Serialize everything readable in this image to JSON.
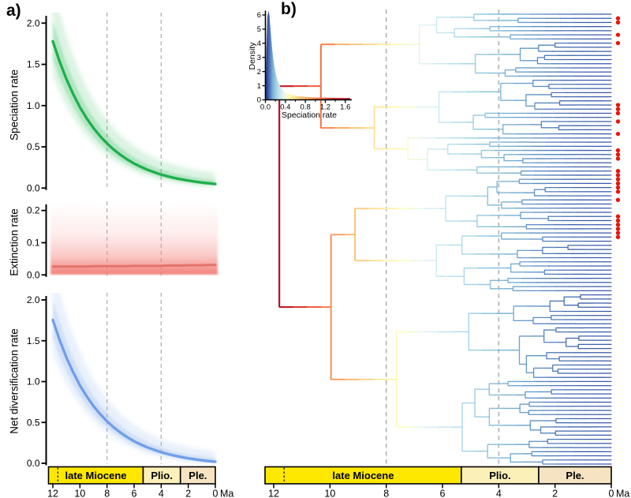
{
  "figure": {
    "panel_a_label": "a)",
    "panel_b_label": "b)",
    "time_unit": "Ma",
    "x_ticks": [
      12,
      10,
      8,
      6,
      4,
      2,
      0
    ],
    "dashed_guides_ma": [
      8,
      4
    ],
    "era_bar": {
      "boundary_dashed_ma": 11.63,
      "segments": [
        {
          "label": "late Miocene",
          "from_ma": 12,
          "to_ma": 5.33,
          "color": "#ffe800"
        },
        {
          "label": "Plio.",
          "from_ma": 5.33,
          "to_ma": 2.58,
          "color": "#fbf0b8"
        },
        {
          "label": "Ple.",
          "from_ma": 2.58,
          "to_ma": 0,
          "color": "#f5e3c2"
        }
      ]
    }
  },
  "panel_a": {
    "plots": [
      {
        "ylabel": "Speciation rate",
        "yticks": [
          "0.0",
          "0.5",
          "1.0",
          "1.5",
          "2.0"
        ],
        "line_color": "#1fae4b",
        "band_color": "#4cc473"
      },
      {
        "ylabel": "Extinction rate",
        "yticks": [
          "0.0",
          "0.1",
          "0.2"
        ],
        "line_color": "#e4736b",
        "band_color": "#f29d96"
      },
      {
        "ylabel": "Net diversification rate",
        "yticks": [
          "0.0",
          "0.5",
          "1.0",
          "1.5",
          "2.0"
        ],
        "line_color": "#6f9ee8",
        "band_color": "#93b7ee"
      }
    ]
  },
  "panel_b": {
    "inset": {
      "xlabel": "Speciation rate",
      "ylabel": "Density",
      "xticks": [
        "0.0",
        "0.4",
        "0.8",
        "1.2",
        "1.6"
      ],
      "yticks": [
        0,
        1,
        2,
        3,
        4,
        5,
        6
      ]
    },
    "tree": {
      "n_tips": 110,
      "root_age_ma": 11.8,
      "seed": 9,
      "color_encodes": "speciation rate",
      "tip_dot_color": "#e8150d",
      "red_dot_tip_rows": [
        1,
        2,
        5,
        7,
        22,
        23,
        24,
        26,
        29,
        33,
        34,
        35,
        38,
        39,
        40,
        41,
        42,
        43,
        45,
        49,
        50,
        51,
        52,
        53,
        54
      ]
    },
    "colormap_rate_norm_to_color": [
      [
        0.0,
        "#1f2a8c"
      ],
      [
        0.12,
        "#2e3f9e"
      ],
      [
        0.2,
        "#3f63ae"
      ],
      [
        0.28,
        "#74add1"
      ],
      [
        0.36,
        "#abd9e9"
      ],
      [
        0.44,
        "#dff2f7"
      ],
      [
        0.5,
        "#ffffbf"
      ],
      [
        0.58,
        "#fee090"
      ],
      [
        0.68,
        "#fdae61"
      ],
      [
        0.78,
        "#f46d43"
      ],
      [
        0.88,
        "#d73027"
      ],
      [
        1.0,
        "#a50026"
      ]
    ],
    "rate_max": 1.8
  },
  "chart_data": [
    {
      "type": "line",
      "id": "speciation_rate_through_time",
      "ylabel": "Speciation rate",
      "xlabel": "Ma",
      "x_ma": [
        12,
        11.5,
        11,
        10.5,
        10,
        9.5,
        9,
        8.5,
        8,
        7.5,
        7,
        6.5,
        6,
        5.5,
        5,
        4.5,
        4,
        3.5,
        3,
        2.5,
        2,
        1.5,
        1,
        0.5,
        0
      ],
      "y": [
        1.78,
        1.534,
        1.322,
        1.139,
        0.981,
        0.845,
        0.728,
        0.628,
        0.541,
        0.466,
        0.402,
        0.346,
        0.298,
        0.257,
        0.221,
        0.191,
        0.164,
        0.142,
        0.122,
        0.105,
        0.091,
        0.078,
        0.067,
        0.058,
        0.05
      ],
      "ylim": [
        0,
        2.1
      ],
      "x_dashed_guides": [
        8,
        4
      ],
      "note": "solid line with shaded credible interval"
    },
    {
      "type": "line",
      "id": "extinction_rate_through_time",
      "ylabel": "Extinction rate",
      "xlabel": "Ma",
      "x_ma": [
        12,
        11.5,
        11,
        10.5,
        10,
        9.5,
        9,
        8.5,
        8,
        7.5,
        7,
        6.5,
        6,
        5.5,
        5,
        4.5,
        4,
        3.5,
        3,
        2.5,
        2,
        1.5,
        1,
        0.5,
        0
      ],
      "y": [
        0.026,
        0.026,
        0.026,
        0.026,
        0.026,
        0.026,
        0.027,
        0.027,
        0.027,
        0.027,
        0.027,
        0.027,
        0.028,
        0.028,
        0.028,
        0.028,
        0.028,
        0.029,
        0.029,
        0.029,
        0.03,
        0.03,
        0.03,
        0.031,
        0.031
      ],
      "ylim": [
        0,
        0.23
      ],
      "x_dashed_guides": [
        8,
        4
      ],
      "note": "flat line with shaded credible interval fading upward"
    },
    {
      "type": "line",
      "id": "net_diversification_rate_through_time",
      "ylabel": "Net diversification rate",
      "xlabel": "Ma",
      "x_ma": [
        12,
        11.5,
        11,
        10.5,
        10,
        9.5,
        9,
        8.5,
        8,
        7.5,
        7,
        6.5,
        6,
        5.5,
        5,
        4.5,
        4,
        3.5,
        3,
        2.5,
        2,
        1.5,
        1,
        0.5,
        0
      ],
      "y": [
        1.754,
        1.508,
        1.296,
        1.113,
        0.955,
        0.819,
        0.701,
        0.601,
        0.514,
        0.439,
        0.375,
        0.319,
        0.27,
        0.229,
        0.193,
        0.163,
        0.136,
        0.113,
        0.093,
        0.076,
        0.061,
        0.048,
        0.037,
        0.027,
        0.019
      ],
      "ylim": [
        0,
        2.1
      ],
      "x_dashed_guides": [
        8,
        4
      ],
      "note": "solid line with shaded credible interval"
    },
    {
      "type": "area",
      "id": "speciation_rate_posterior_density",
      "xlabel": "Speciation rate",
      "ylabel": "Density",
      "x": [
        0,
        0.02,
        0.04,
        0.06,
        0.08,
        0.1,
        0.12,
        0.15,
        0.18,
        0.22,
        0.26,
        0.3,
        0.35,
        0.4,
        0.5,
        0.6,
        0.7,
        0.8,
        0.9,
        1,
        1.1,
        1.2,
        1.35,
        1.5,
        1.6,
        1.7
      ],
      "y": [
        0,
        3.6,
        5.9,
        6.3,
        6,
        5.1,
        4.2,
        3.1,
        2.35,
        1.65,
        1.2,
        0.92,
        0.68,
        0.53,
        0.37,
        0.29,
        0.24,
        0.21,
        0.185,
        0.17,
        0.16,
        0.15,
        0.14,
        0.135,
        0.13,
        0.125
      ],
      "xlim": [
        0,
        1.8
      ],
      "ylim": [
        0,
        6.5
      ],
      "note": "fill colored by speciation-rate colormap (blue low, dark red high)"
    },
    {
      "type": "phylogeny",
      "id": "rate_colored_phylogeny",
      "n_tips": 110,
      "root_age_ma": 11.8,
      "x_range_ma": [
        12,
        0
      ],
      "branch_color_encodes": "speciation rate (dark red = high / old, navy blue = low / recent)",
      "x_dashed_guides": [
        8,
        4
      ],
      "red_dot_tip_rows": [
        1,
        2,
        5,
        7,
        22,
        23,
        24,
        26,
        29,
        33,
        34,
        35,
        38,
        39,
        40,
        41,
        42,
        43,
        45,
        49,
        50,
        51,
        52,
        53,
        54
      ]
    }
  ]
}
